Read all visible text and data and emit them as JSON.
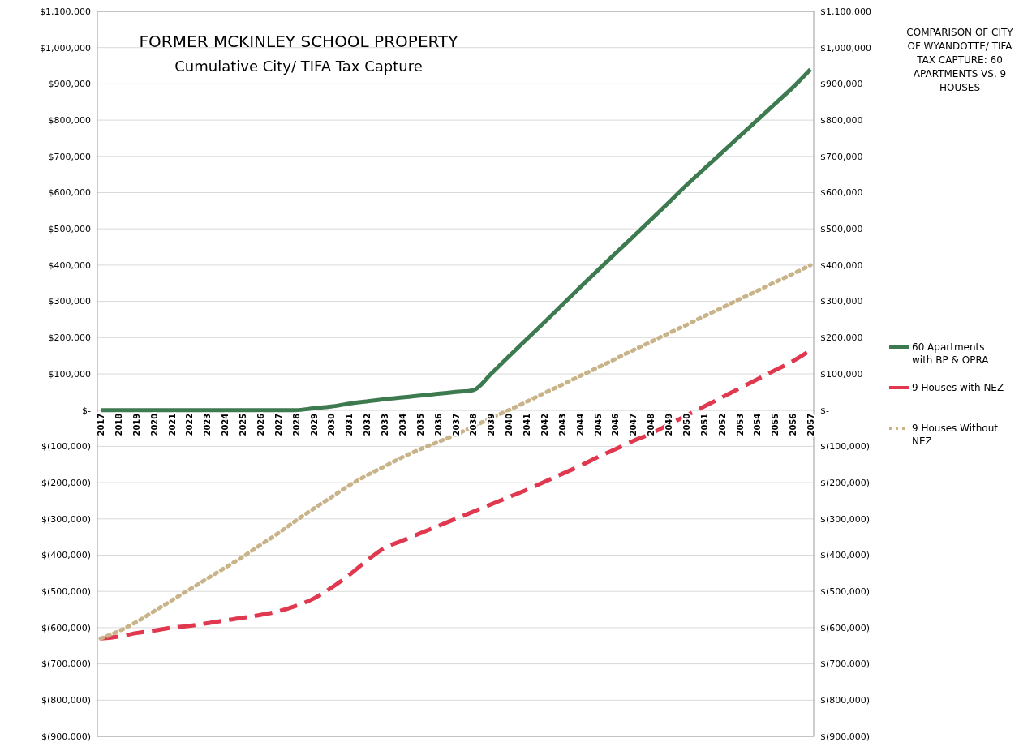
{
  "chart_data": {
    "type": "line",
    "title": "FORMER MCKINLEY SCHOOL PROPERTY",
    "subtitle": "Cumulative City/ TIFA Tax Capture",
    "annotations": [
      "COMPARISON OF CITY OF WYANDOTTE/ TIFA TAX CAPTURE: 60 APARTMENTS VS. 9 HOUSES"
    ],
    "categories": [
      "2017",
      "2018",
      "2019",
      "2020",
      "2021",
      "2022",
      "2023",
      "2024",
      "2025",
      "2026",
      "2027",
      "2028",
      "2029",
      "2030",
      "2031",
      "2032",
      "2033",
      "2034",
      "2035",
      "2036",
      "2037",
      "2038",
      "2039",
      "2040",
      "2041",
      "2042",
      "2043",
      "2044",
      "2045",
      "2046",
      "2047",
      "2048",
      "2049",
      "2050",
      "2051",
      "2052",
      "2053",
      "2054",
      "2055",
      "2056",
      "2057"
    ],
    "series": [
      {
        "name": "60 Apartments with BP & OPRA",
        "color": "#3d7a4f",
        "line_style": "solid",
        "values": [
          0,
          0,
          0,
          0,
          0,
          0,
          0,
          0,
          0,
          0,
          0,
          0,
          5000,
          10000,
          18000,
          24000,
          30000,
          35000,
          40000,
          45000,
          50000,
          55000,
          100000,
          148000,
          195000,
          242000,
          290000,
          338000,
          385000,
          432000,
          478000,
          525000,
          572000,
          620000,
          665000,
          710000,
          755000,
          800000,
          845000,
          890000,
          940000
        ]
      },
      {
        "name": "9 Houses with NEZ",
        "color": "#e0384f",
        "line_style": "dashed",
        "values": [
          -630000,
          -625000,
          -615000,
          -608000,
          -600000,
          -595000,
          -588000,
          -580000,
          -573000,
          -565000,
          -555000,
          -540000,
          -520000,
          -490000,
          -455000,
          -415000,
          -380000,
          -360000,
          -340000,
          -320000,
          -300000,
          -280000,
          -260000,
          -240000,
          -220000,
          -198000,
          -176000,
          -154000,
          -130000,
          -108000,
          -85000,
          -65000,
          -40000,
          -15000,
          10000,
          35000,
          60000,
          85000,
          110000,
          135000,
          165000
        ]
      },
      {
        "name": "9 Houses Without NEZ",
        "color": "#c9b48a",
        "line_style": "dotted",
        "values": [
          -630000,
          -610000,
          -585000,
          -555000,
          -525000,
          -495000,
          -465000,
          -435000,
          -405000,
          -372000,
          -340000,
          -305000,
          -272000,
          -240000,
          -208000,
          -180000,
          -155000,
          -130000,
          -108000,
          -88000,
          -68000,
          -45000,
          -22000,
          0,
          23000,
          47000,
          70000,
          94000,
          117000,
          141000,
          165000,
          188000,
          212000,
          235000,
          259000,
          282000,
          306000,
          329000,
          353000,
          376000,
          400000
        ]
      }
    ],
    "ylim": [
      -900000,
      1100000
    ],
    "yticks": [
      {
        "value": 1100000,
        "label": "$1,100,000"
      },
      {
        "value": 1000000,
        "label": "$1,000,000"
      },
      {
        "value": 900000,
        "label": "$900,000"
      },
      {
        "value": 800000,
        "label": "$800,000"
      },
      {
        "value": 700000,
        "label": "$700,000"
      },
      {
        "value": 600000,
        "label": "$600,000"
      },
      {
        "value": 500000,
        "label": "$500,000"
      },
      {
        "value": 400000,
        "label": "$400,000"
      },
      {
        "value": 300000,
        "label": "$300,000"
      },
      {
        "value": 200000,
        "label": "$200,000"
      },
      {
        "value": 100000,
        "label": "$100,000"
      },
      {
        "value": 0,
        "label": "$-"
      },
      {
        "value": -100000,
        "label": "$(100,000)"
      },
      {
        "value": -200000,
        "label": "$(200,000)"
      },
      {
        "value": -300000,
        "label": "$(300,000)"
      },
      {
        "value": -400000,
        "label": "$(400,000)"
      },
      {
        "value": -500000,
        "label": "$(500,000)"
      },
      {
        "value": -600000,
        "label": "$(600,000)"
      },
      {
        "value": -700000,
        "label": "$(700,000)"
      },
      {
        "value": -800000,
        "label": "$(800,000)"
      },
      {
        "value": -900000,
        "label": "$(900,000)"
      }
    ],
    "y2lim": [
      -900000,
      1100000
    ],
    "y2ticks": [
      {
        "value": 1100000,
        "label": "$1,100,000"
      },
      {
        "value": 1000000,
        "label": "$1,000,000"
      },
      {
        "value": 900000,
        "label": "$900,000"
      },
      {
        "value": 800000,
        "label": "$800,000"
      },
      {
        "value": 700000,
        "label": "$700,000"
      },
      {
        "value": 600000,
        "label": "$600,000"
      },
      {
        "value": 500000,
        "label": "$500,000"
      },
      {
        "value": 400000,
        "label": "$400,000"
      },
      {
        "value": 300000,
        "label": "$300,000"
      },
      {
        "value": 200000,
        "label": "$200,000"
      },
      {
        "value": 100000,
        "label": "$100,000"
      },
      {
        "value": 0,
        "label": "$-"
      },
      {
        "value": -100000,
        "label": "$(100,000)"
      },
      {
        "value": -200000,
        "label": "$(200,000)"
      },
      {
        "value": -300000,
        "label": "$(300,000)"
      },
      {
        "value": -400000,
        "label": "$(400,000)"
      },
      {
        "value": -500000,
        "label": "$(500,000)"
      },
      {
        "value": -600000,
        "label": "$(600,000)"
      },
      {
        "value": -700000,
        "label": "$(700,000)"
      },
      {
        "value": -800000,
        "label": "$(800,000)"
      },
      {
        "value": -900000,
        "label": "$(900,000)"
      }
    ],
    "grid": "y",
    "legend": "right"
  }
}
